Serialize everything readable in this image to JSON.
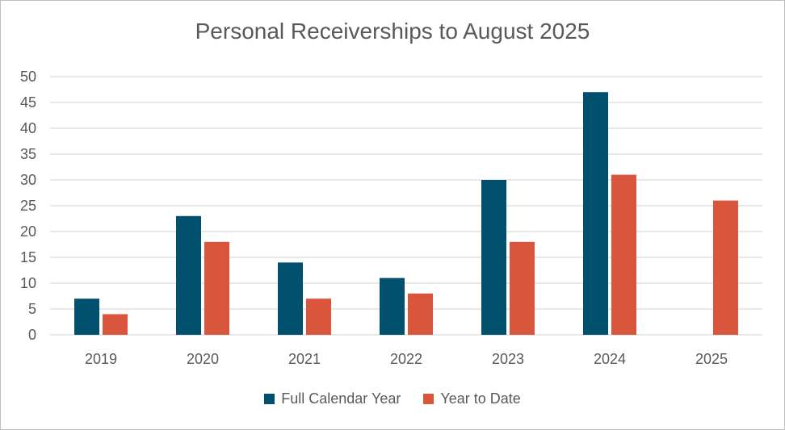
{
  "chart_data": {
    "type": "bar",
    "title": "Personal Receiverships to August 2025",
    "categories": [
      "2019",
      "2020",
      "2021",
      "2022",
      "2023",
      "2024",
      "2025"
    ],
    "series": [
      {
        "name": "Full Calendar Year",
        "color": "#00506E",
        "values": [
          7,
          23,
          14,
          11,
          30,
          47,
          null
        ]
      },
      {
        "name": "Year to Date",
        "color": "#D9553B",
        "values": [
          4,
          18,
          7,
          8,
          18,
          31,
          26
        ]
      }
    ],
    "ylim": [
      0,
      50
    ],
    "yticks": [
      "0",
      "5",
      "10",
      "15",
      "20",
      "25",
      "30",
      "35",
      "40",
      "45",
      "50"
    ],
    "grid": true,
    "legend_position": "bottom"
  }
}
